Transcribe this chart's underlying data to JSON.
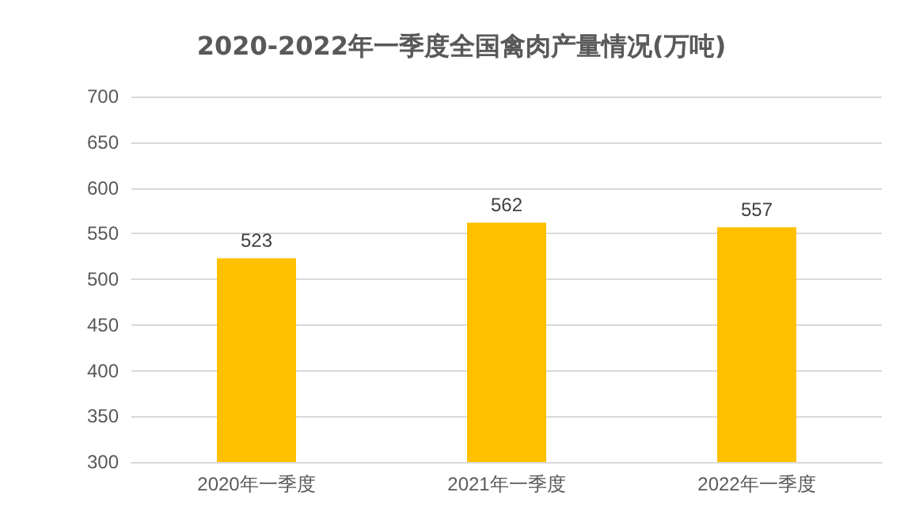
{
  "chart_data": {
    "type": "bar",
    "title": "2020-2022年一季度全国禽肉产量情况(万吨)",
    "categories": [
      "2020年一季度",
      "2021年一季度",
      "2022年一季度"
    ],
    "values": [
      523,
      562,
      557
    ],
    "color": "#ffc000",
    "ylim": [
      300,
      700
    ],
    "yticks": [
      300,
      350,
      400,
      450,
      500,
      550,
      600,
      650,
      700
    ],
    "grid": "y",
    "data_labels": true
  }
}
